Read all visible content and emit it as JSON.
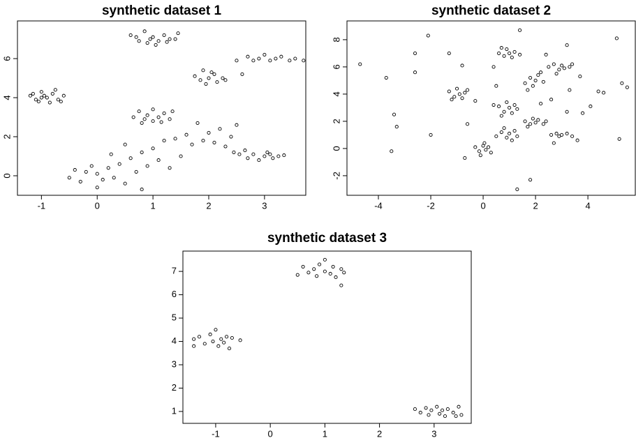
{
  "chart_data": [
    {
      "type": "scatter",
      "title": "synthetic dataset 1",
      "color": "#000000",
      "xlim": [
        -1.43,
        3.74
      ],
      "ylim": [
        -1,
        7.93
      ],
      "xticks": [
        -1,
        0,
        1,
        2,
        3
      ],
      "yticks": [
        0,
        2,
        4,
        6
      ],
      "x": [
        -1.2,
        -1.1,
        -1.0,
        -0.9,
        -0.8,
        -1.05,
        -0.95,
        -0.7,
        -1.15,
        -0.85,
        -1.0,
        -0.75,
        -0.6,
        -0.65,
        0.6,
        0.75,
        0.85,
        0.9,
        1.0,
        1.1,
        1.2,
        1.3,
        1.45,
        0.7,
        1.05,
        1.25,
        0.95,
        1.4,
        1.75,
        1.85,
        1.9,
        2.0,
        2.1,
        2.15,
        2.25,
        1.95,
        2.05,
        2.3,
        2.5,
        2.7,
        2.8,
        2.9,
        3.0,
        3.1,
        3.2,
        3.3,
        3.45,
        3.55,
        2.6,
        3.7,
        0.65,
        0.75,
        0.85,
        0.9,
        1.0,
        1.0,
        1.1,
        1.2,
        1.3,
        1.35,
        0.8,
        1.15,
        2.55,
        2.7,
        2.8,
        2.9,
        3.0,
        3.05,
        3.15,
        3.25,
        3.35,
        2.65,
        3.1,
        -0.5,
        -0.4,
        -0.3,
        -0.2,
        -0.1,
        0.0,
        0.0,
        0.1,
        0.2,
        0.25,
        0.3,
        0.4,
        0.5,
        0.5,
        0.6,
        0.7,
        0.8,
        0.8,
        0.9,
        1.0,
        1.1,
        1.2,
        1.3,
        1.4,
        1.5,
        1.6,
        1.7,
        1.8,
        1.9,
        2.0,
        2.1,
        2.2,
        2.3,
        2.4,
        2.5,
        2.45
      ],
      "values": [
        4.1,
        3.9,
        4.3,
        4.0,
        4.2,
        3.8,
        4.1,
        3.9,
        4.2,
        3.75,
        4.0,
        4.4,
        4.1,
        3.8,
        7.2,
        6.9,
        7.4,
        6.8,
        7.1,
        6.9,
        7.2,
        7.0,
        7.3,
        7.1,
        6.7,
        6.85,
        7.0,
        7.0,
        5.1,
        4.9,
        5.4,
        5.0,
        5.2,
        4.8,
        5.0,
        4.7,
        5.3,
        4.9,
        5.9,
        6.1,
        5.9,
        6.0,
        6.2,
        5.9,
        6.0,
        6.1,
        5.9,
        6.0,
        5.2,
        5.9,
        3.0,
        3.3,
        2.9,
        3.1,
        2.8,
        3.4,
        3.0,
        3.2,
        2.9,
        3.3,
        2.7,
        2.75,
        1.1,
        0.9,
        1.1,
        0.8,
        1.0,
        1.2,
        0.9,
        1.0,
        1.05,
        1.3,
        1.1,
        -0.1,
        0.3,
        -0.3,
        0.2,
        0.5,
        -0.6,
        0.1,
        -0.2,
        0.4,
        1.1,
        -0.1,
        0.6,
        -0.4,
        1.6,
        0.9,
        0.2,
        1.2,
        -0.7,
        0.5,
        1.4,
        0.8,
        1.8,
        0.4,
        1.9,
        1.0,
        2.1,
        1.6,
        2.7,
        1.8,
        2.2,
        1.7,
        2.4,
        1.5,
        2.0,
        2.6,
        1.2
      ]
    },
    {
      "type": "scatter",
      "title": "synthetic dataset 2",
      "color": "#000000",
      "xlim": [
        -5.2,
        5.81
      ],
      "ylim": [
        -3.44,
        9.38
      ],
      "xticks": [
        -4,
        -2,
        0,
        2,
        4
      ],
      "yticks": [
        -2,
        0,
        2,
        4,
        6,
        8
      ],
      "x": [
        -1.3,
        -1.1,
        -1.0,
        -0.9,
        -0.7,
        -1.2,
        -0.8,
        -0.6,
        -0.3,
        -0.15,
        0.0,
        0.1,
        0.2,
        0.3,
        0.05,
        -0.1,
        0.6,
        0.8,
        0.9,
        1.0,
        1.1,
        1.2,
        1.4,
        0.7,
        0.6,
        0.8,
        0.9,
        1.0,
        1.1,
        1.2,
        1.3,
        0.7,
        0.5,
        0.7,
        0.9,
        1.0,
        1.2,
        1.3,
        0.8,
        1.1,
        1.6,
        1.8,
        1.9,
        2.0,
        2.1,
        2.3,
        1.7,
        2.2,
        1.6,
        1.8,
        1.9,
        2.0,
        2.1,
        2.3,
        2.4,
        1.7,
        2.5,
        2.7,
        2.9,
        3.0,
        3.1,
        3.3,
        3.4,
        2.8,
        2.6,
        2.8,
        2.9,
        3.0,
        3.2,
        3.4,
        3.6,
        2.7,
        -4.7,
        -3.7,
        -3.4,
        -3.3,
        -3.5,
        -2.6,
        -2.6,
        -2.0,
        -2.1,
        -1.3,
        -0.8,
        -0.6,
        -0.7,
        0.4,
        0.4,
        1.4,
        1.3,
        1.8,
        2.4,
        2.2,
        3.2,
        3.2,
        3.3,
        3.7,
        4.1,
        4.4,
        4.6,
        5.1,
        5.3,
        5.5,
        5.2,
        -0.3,
        0.5,
        2.6,
        3.8
      ],
      "values": [
        4.2,
        3.8,
        4.4,
        4.0,
        4.1,
        3.6,
        3.7,
        4.3,
        0.1,
        -0.2,
        0.2,
        -0.1,
        0.1,
        -0.3,
        0.4,
        -0.5,
        7.0,
        6.8,
        7.3,
        7.0,
        6.7,
        7.1,
        6.9,
        7.4,
        3.1,
        2.7,
        3.4,
        3.0,
        2.6,
        3.2,
        2.9,
        2.4,
        0.9,
        1.2,
        0.8,
        1.1,
        1.3,
        0.9,
        1.5,
        0.6,
        4.8,
        5.2,
        4.6,
        5.0,
        5.4,
        4.9,
        4.3,
        5.6,
        2.0,
        1.8,
        2.2,
        1.9,
        2.1,
        1.8,
        2.0,
        1.6,
        6.0,
        6.2,
        5.8,
        6.1,
        5.9,
        6.0,
        6.2,
        5.5,
        1.0,
        1.1,
        0.9,
        1.0,
        1.1,
        0.9,
        0.6,
        0.4,
        6.2,
        5.2,
        2.5,
        1.6,
        -0.2,
        7.0,
        5.6,
        1.0,
        8.3,
        7.0,
        6.1,
        1.8,
        -0.7,
        6.0,
        3.2,
        8.7,
        -3.0,
        -2.3,
        6.9,
        3.3,
        7.6,
        2.7,
        4.3,
        5.3,
        3.1,
        4.2,
        4.1,
        8.1,
        4.8,
        4.5,
        0.7,
        3.5,
        4.6,
        3.6,
        2.6
      ]
    },
    {
      "type": "scatter",
      "title": "synthetic dataset 3",
      "color": "#000000",
      "xlim": [
        -1.6,
        3.68
      ],
      "ylim": [
        0.49,
        7.87
      ],
      "xticks": [
        -1,
        0,
        1,
        2,
        3
      ],
      "yticks": [
        1,
        2,
        3,
        4,
        5,
        6,
        7
      ],
      "x": [
        -1.4,
        -1.4,
        -1.3,
        -1.2,
        -1.1,
        -1.05,
        -1.0,
        -0.95,
        -0.9,
        -0.85,
        -0.8,
        -0.75,
        -0.7,
        -0.55,
        0.5,
        0.6,
        0.7,
        0.8,
        0.85,
        0.9,
        1.0,
        1.0,
        1.1,
        1.15,
        1.2,
        1.3,
        1.3,
        1.35,
        2.65,
        2.75,
        2.85,
        2.9,
        2.95,
        3.05,
        3.1,
        3.15,
        3.2,
        3.25,
        3.35,
        3.4,
        3.45,
        3.5
      ],
      "values": [
        4.1,
        3.8,
        4.2,
        3.9,
        4.3,
        4.0,
        4.5,
        3.8,
        4.1,
        3.95,
        4.2,
        3.7,
        4.15,
        4.05,
        6.85,
        7.2,
        6.95,
        7.1,
        6.8,
        7.3,
        7.0,
        7.5,
        6.9,
        7.2,
        6.75,
        7.1,
        6.4,
        6.95,
        1.1,
        0.95,
        1.15,
        0.85,
        1.05,
        1.2,
        0.9,
        1.05,
        0.8,
        1.1,
        0.95,
        0.8,
        1.2,
        0.85
      ]
    }
  ]
}
